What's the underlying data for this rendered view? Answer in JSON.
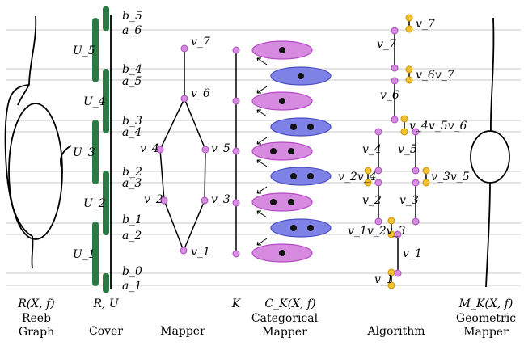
{
  "labels": {
    "cover_sets": [
      "U_5",
      "U_4",
      "U_3",
      "U_2",
      "U_1"
    ],
    "cover_interval_ends": [
      "b_5",
      "a_6",
      "b_4",
      "a_5",
      "b_3",
      "a_4",
      "b_2",
      "a_3",
      "b_1",
      "a_2",
      "b_0",
      "a_1"
    ],
    "mapper_vertices": [
      "v_7",
      "v_6",
      "v_4",
      "v_5",
      "v_2",
      "v_3",
      "v_1"
    ],
    "k_label": "K",
    "algo_vertices": [
      "v_7",
      "v_6v_7",
      "v_6",
      "v_4v_5v_6",
      "v_4",
      "v_5",
      "v_2v_4",
      "v_3v_5",
      "v_2",
      "v_3",
      "v_1v_2v_3",
      "v_1",
      "v_1"
    ]
  },
  "captions": {
    "reeb_math": "R(X, f)",
    "reeb_line1": "Reeb",
    "reeb_line2": "Graph",
    "cover_math": "R, U",
    "cover_text": "Cover",
    "mapper_text": "Mapper",
    "k_math": "K",
    "categorical_math": "C_K(X, f)",
    "categorical_line1": "Categorical",
    "categorical_line2": "Mapper",
    "algorithm_text": "Algorithm",
    "geometric_math": "M_K(X, f)",
    "geometric_line1": "Geometric",
    "geometric_line2": "Mapper"
  },
  "colors": {
    "cover_green": "#2a7a45",
    "mapper_vertex": "#d58ce0",
    "algorithm_vertex": "#f2c230",
    "pink_ellipse": "#d68ae0",
    "blue_ellipse": "#7e82e6"
  }
}
